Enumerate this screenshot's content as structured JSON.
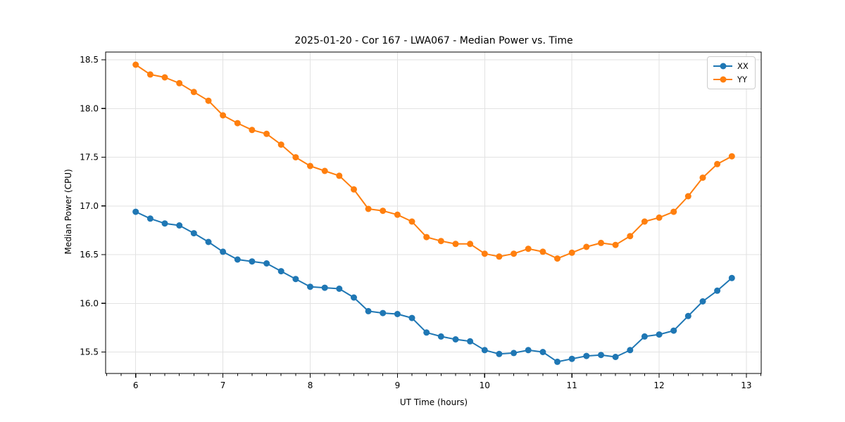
{
  "chart_data": {
    "type": "line",
    "title": "2025-01-20 - Cor 167 - LWA067 - Median Power vs. Time",
    "xlabel": "UT Time (hours)",
    "ylabel": "Median Power (CPU)",
    "xlim": [
      5.655,
      13.17
    ],
    "ylim": [
      15.28,
      18.58
    ],
    "x_ticks": [
      6,
      7,
      8,
      9,
      10,
      11,
      12,
      13
    ],
    "x_minor_tick_step": 0.1666667,
    "y_ticks": [
      15.5,
      16.0,
      16.5,
      17.0,
      17.5,
      18.0,
      18.5
    ],
    "grid": true,
    "legend_position": "upper right",
    "background_color": "#ffffff",
    "grid_color": "#e2e2e2",
    "spine_color": "#000000",
    "x": [
      6.0,
      6.1667,
      6.3333,
      6.5,
      6.6667,
      6.8333,
      7.0,
      7.1667,
      7.3333,
      7.5,
      7.6667,
      7.8333,
      8.0,
      8.1667,
      8.3333,
      8.5,
      8.6667,
      8.8333,
      9.0,
      9.1667,
      9.3333,
      9.5,
      9.6667,
      9.8333,
      10.0,
      10.1667,
      10.3333,
      10.5,
      10.6667,
      10.8333,
      11.0,
      11.1667,
      11.3333,
      11.5,
      11.6667,
      11.8333,
      12.0,
      12.1667,
      12.3333,
      12.5,
      12.6667,
      12.8333
    ],
    "series": [
      {
        "name": "XX",
        "color": "#1f77b4",
        "marker": "circle",
        "values": [
          16.94,
          16.87,
          16.82,
          16.8,
          16.72,
          16.63,
          16.53,
          16.45,
          16.43,
          16.41,
          16.33,
          16.25,
          16.17,
          16.16,
          16.15,
          16.06,
          15.92,
          15.9,
          15.89,
          15.85,
          15.7,
          15.66,
          15.63,
          15.61,
          15.52,
          15.48,
          15.49,
          15.52,
          15.5,
          15.4,
          15.43,
          15.46,
          15.47,
          15.45,
          15.52,
          15.66,
          15.68,
          15.72,
          15.87,
          16.02,
          16.13,
          16.26
        ]
      },
      {
        "name": "YY",
        "color": "#ff7f0e",
        "marker": "circle",
        "values": [
          18.45,
          18.35,
          18.32,
          18.26,
          18.17,
          18.08,
          17.93,
          17.85,
          17.78,
          17.74,
          17.63,
          17.5,
          17.41,
          17.36,
          17.31,
          17.17,
          16.97,
          16.95,
          16.91,
          16.84,
          16.68,
          16.64,
          16.61,
          16.61,
          16.51,
          16.48,
          16.51,
          16.56,
          16.53,
          16.46,
          16.52,
          16.58,
          16.62,
          16.6,
          16.69,
          16.84,
          16.88,
          16.94,
          17.1,
          17.29,
          17.43,
          17.51
        ]
      }
    ]
  }
}
